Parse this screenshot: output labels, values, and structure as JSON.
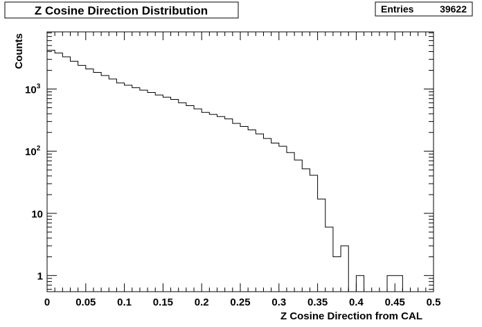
{
  "title": "Z Cosine Direction Distribution",
  "stats": {
    "label": "Entries",
    "value": "39622"
  },
  "chart_data": {
    "type": "bar",
    "title": "Z Cosine Direction Distribution",
    "xlabel": "Z Cosine Direction from CAL",
    "ylabel": "Counts",
    "xlim": [
      0,
      0.5
    ],
    "ylim": [
      0.55,
      8300
    ],
    "yscale": "log",
    "grid": false,
    "bin_width": 0.01,
    "x_tick_labels": [
      "0",
      "0.05",
      "0.1",
      "0.15",
      "0.2",
      "0.25",
      "0.3",
      "0.35",
      "0.4",
      "0.45",
      "0.5"
    ],
    "y_tick_labels": [
      "1",
      "10",
      "10^3_placeholder"
    ],
    "series": [
      {
        "values": [
          4200,
          3800,
          3300,
          2800,
          2400,
          2100,
          1850,
          1650,
          1450,
          1250,
          1150,
          1050,
          960,
          880,
          800,
          740,
          680,
          600,
          540,
          480,
          420,
          390,
          360,
          330,
          280,
          250,
          220,
          190,
          160,
          135,
          120,
          95,
          72,
          52,
          41,
          17,
          6,
          2,
          3,
          0,
          1,
          0,
          0,
          0,
          1,
          1,
          0,
          0,
          0,
          0
        ]
      }
    ]
  }
}
